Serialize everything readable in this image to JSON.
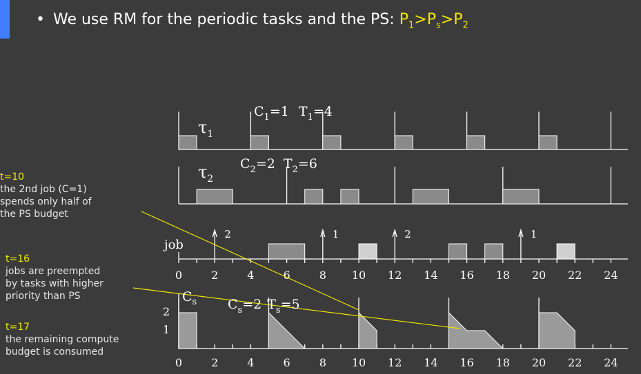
{
  "header": {
    "bullet": "•",
    "text": "We use RM for the periodic tasks and the PS:",
    "priority": {
      "p1": "P",
      "p1_sub": "1",
      "gt1": ">",
      "ps": "P",
      "ps_sub": "s",
      "gt2": ">",
      "p2": "P",
      "p2_sub": "2"
    }
  },
  "notes": [
    {
      "time": "t=10",
      "lines": [
        "the 2nd job (C=1)",
        "spends only half of",
        "the PS budget"
      ]
    },
    {
      "time": "t=16",
      "lines": [
        "jobs are preempted",
        "by tasks with higher",
        "priority than PS"
      ]
    },
    {
      "time": "t=17",
      "lines": [
        "the remaining compute",
        "budget is consumed"
      ]
    }
  ],
  "diagram": {
    "task1": {
      "label": "τ",
      "sub": "1",
      "params": {
        "c": "C",
        "c_sub": "1",
        "c_val": "=1",
        "t": "T",
        "t_sub": "1",
        "t_val": "=4"
      }
    },
    "task2": {
      "label": "τ",
      "sub": "2",
      "params": {
        "c": "C",
        "c_sub": "2",
        "c_val": "=2",
        "t": "T",
        "t_sub": "2",
        "t_val": "=6"
      }
    },
    "job_label": "job",
    "arrival_labels": [
      "2",
      "1",
      "2",
      "1"
    ],
    "budget": {
      "label": "C",
      "sub": "s",
      "params": {
        "c": "C",
        "c_sub": "s",
        "c_val": "=2",
        "t": "T",
        "t_sub": "s",
        "t_val": "=5"
      },
      "y_ticks": [
        "2",
        "1"
      ]
    },
    "x_ticks": [
      "0",
      "2",
      "4",
      "6",
      "8",
      "10",
      "12",
      "14",
      "16",
      "18",
      "20",
      "22",
      "24"
    ]
  },
  "colors": {
    "background": "#3b3b3b",
    "accent": "#3f7dfb",
    "highlight": "#f2e600",
    "bar": "#8a8a8a",
    "bar_light": "#d0d0d0",
    "axis": "#ffffff"
  }
}
